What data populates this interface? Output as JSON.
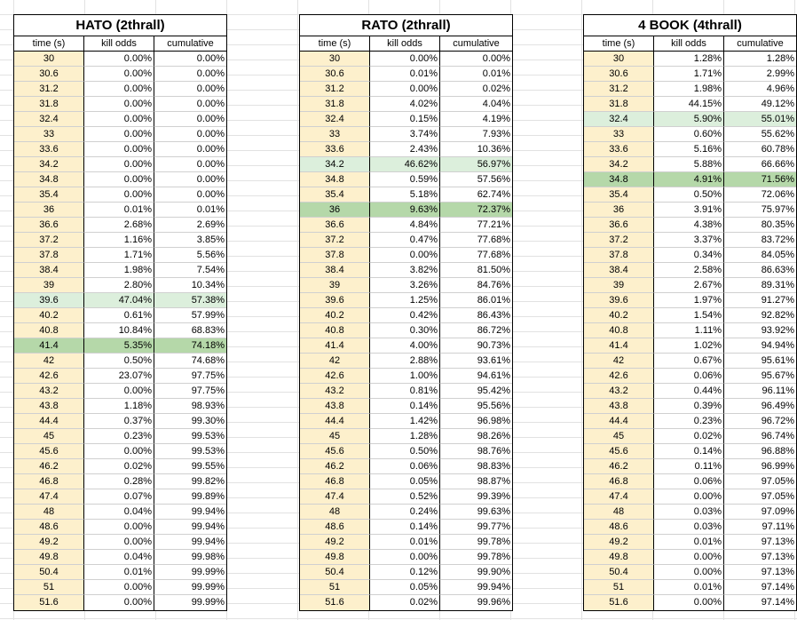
{
  "tables": [
    {
      "title": "HATO (2thrall)",
      "headers": [
        "time (s)",
        "kill odds",
        "cumulative"
      ],
      "highlight_light_row": 16,
      "highlight_dark_row": 19,
      "rows": [
        [
          "30",
          "0.00%",
          "0.00%"
        ],
        [
          "30.6",
          "0.00%",
          "0.00%"
        ],
        [
          "31.2",
          "0.00%",
          "0.00%"
        ],
        [
          "31.8",
          "0.00%",
          "0.00%"
        ],
        [
          "32.4",
          "0.00%",
          "0.00%"
        ],
        [
          "33",
          "0.00%",
          "0.00%"
        ],
        [
          "33.6",
          "0.00%",
          "0.00%"
        ],
        [
          "34.2",
          "0.00%",
          "0.00%"
        ],
        [
          "34.8",
          "0.00%",
          "0.00%"
        ],
        [
          "35.4",
          "0.00%",
          "0.00%"
        ],
        [
          "36",
          "0.01%",
          "0.01%"
        ],
        [
          "36.6",
          "2.68%",
          "2.69%"
        ],
        [
          "37.2",
          "1.16%",
          "3.85%"
        ],
        [
          "37.8",
          "1.71%",
          "5.56%"
        ],
        [
          "38.4",
          "1.98%",
          "7.54%"
        ],
        [
          "39",
          "2.80%",
          "10.34%"
        ],
        [
          "39.6",
          "47.04%",
          "57.38%"
        ],
        [
          "40.2",
          "0.61%",
          "57.99%"
        ],
        [
          "40.8",
          "10.84%",
          "68.83%"
        ],
        [
          "41.4",
          "5.35%",
          "74.18%"
        ],
        [
          "42",
          "0.50%",
          "74.68%"
        ],
        [
          "42.6",
          "23.07%",
          "97.75%"
        ],
        [
          "43.2",
          "0.00%",
          "97.75%"
        ],
        [
          "43.8",
          "1.18%",
          "98.93%"
        ],
        [
          "44.4",
          "0.37%",
          "99.30%"
        ],
        [
          "45",
          "0.23%",
          "99.53%"
        ],
        [
          "45.6",
          "0.00%",
          "99.53%"
        ],
        [
          "46.2",
          "0.02%",
          "99.55%"
        ],
        [
          "46.8",
          "0.28%",
          "99.82%"
        ],
        [
          "47.4",
          "0.07%",
          "99.89%"
        ],
        [
          "48",
          "0.04%",
          "99.94%"
        ],
        [
          "48.6",
          "0.00%",
          "99.94%"
        ],
        [
          "49.2",
          "0.00%",
          "99.94%"
        ],
        [
          "49.8",
          "0.04%",
          "99.98%"
        ],
        [
          "50.4",
          "0.01%",
          "99.99%"
        ],
        [
          "51",
          "0.00%",
          "99.99%"
        ],
        [
          "51.6",
          "0.00%",
          "99.99%"
        ]
      ]
    },
    {
      "title": "RATO (2thrall)",
      "headers": [
        "time (s)",
        "kill odds",
        "cumulative"
      ],
      "highlight_light_row": 7,
      "highlight_dark_row": 10,
      "rows": [
        [
          "30",
          "0.00%",
          "0.00%"
        ],
        [
          "30.6",
          "0.01%",
          "0.01%"
        ],
        [
          "31.2",
          "0.00%",
          "0.02%"
        ],
        [
          "31.8",
          "4.02%",
          "4.04%"
        ],
        [
          "32.4",
          "0.15%",
          "4.19%"
        ],
        [
          "33",
          "3.74%",
          "7.93%"
        ],
        [
          "33.6",
          "2.43%",
          "10.36%"
        ],
        [
          "34.2",
          "46.62%",
          "56.97%"
        ],
        [
          "34.8",
          "0.59%",
          "57.56%"
        ],
        [
          "35.4",
          "5.18%",
          "62.74%"
        ],
        [
          "36",
          "9.63%",
          "72.37%"
        ],
        [
          "36.6",
          "4.84%",
          "77.21%"
        ],
        [
          "37.2",
          "0.47%",
          "77.68%"
        ],
        [
          "37.8",
          "0.00%",
          "77.68%"
        ],
        [
          "38.4",
          "3.82%",
          "81.50%"
        ],
        [
          "39",
          "3.26%",
          "84.76%"
        ],
        [
          "39.6",
          "1.25%",
          "86.01%"
        ],
        [
          "40.2",
          "0.42%",
          "86.43%"
        ],
        [
          "40.8",
          "0.30%",
          "86.72%"
        ],
        [
          "41.4",
          "4.00%",
          "90.73%"
        ],
        [
          "42",
          "2.88%",
          "93.61%"
        ],
        [
          "42.6",
          "1.00%",
          "94.61%"
        ],
        [
          "43.2",
          "0.81%",
          "95.42%"
        ],
        [
          "43.8",
          "0.14%",
          "95.56%"
        ],
        [
          "44.4",
          "1.42%",
          "96.98%"
        ],
        [
          "45",
          "1.28%",
          "98.26%"
        ],
        [
          "45.6",
          "0.50%",
          "98.76%"
        ],
        [
          "46.2",
          "0.06%",
          "98.83%"
        ],
        [
          "46.8",
          "0.05%",
          "98.87%"
        ],
        [
          "47.4",
          "0.52%",
          "99.39%"
        ],
        [
          "48",
          "0.24%",
          "99.63%"
        ],
        [
          "48.6",
          "0.14%",
          "99.77%"
        ],
        [
          "49.2",
          "0.01%",
          "99.78%"
        ],
        [
          "49.8",
          "0.00%",
          "99.78%"
        ],
        [
          "50.4",
          "0.12%",
          "99.90%"
        ],
        [
          "51",
          "0.05%",
          "99.94%"
        ],
        [
          "51.6",
          "0.02%",
          "99.96%"
        ]
      ]
    },
    {
      "title": "4 BOOK (4thrall)",
      "headers": [
        "time (s)",
        "kill odds",
        "cumulative"
      ],
      "highlight_light_row": 4,
      "highlight_dark_row": 8,
      "rows": [
        [
          "30",
          "1.28%",
          "1.28%"
        ],
        [
          "30.6",
          "1.71%",
          "2.99%"
        ],
        [
          "31.2",
          "1.98%",
          "4.96%"
        ],
        [
          "31.8",
          "44.15%",
          "49.12%"
        ],
        [
          "32.4",
          "5.90%",
          "55.01%"
        ],
        [
          "33",
          "0.60%",
          "55.62%"
        ],
        [
          "33.6",
          "5.16%",
          "60.78%"
        ],
        [
          "34.2",
          "5.88%",
          "66.66%"
        ],
        [
          "34.8",
          "4.91%",
          "71.56%"
        ],
        [
          "35.4",
          "0.50%",
          "72.06%"
        ],
        [
          "36",
          "3.91%",
          "75.97%"
        ],
        [
          "36.6",
          "4.38%",
          "80.35%"
        ],
        [
          "37.2",
          "3.37%",
          "83.72%"
        ],
        [
          "37.8",
          "0.34%",
          "84.05%"
        ],
        [
          "38.4",
          "2.58%",
          "86.63%"
        ],
        [
          "39",
          "2.67%",
          "89.31%"
        ],
        [
          "39.6",
          "1.97%",
          "91.27%"
        ],
        [
          "40.2",
          "1.54%",
          "92.82%"
        ],
        [
          "40.8",
          "1.11%",
          "93.92%"
        ],
        [
          "41.4",
          "1.02%",
          "94.94%"
        ],
        [
          "42",
          "0.67%",
          "95.61%"
        ],
        [
          "42.6",
          "0.06%",
          "95.67%"
        ],
        [
          "43.2",
          "0.44%",
          "96.11%"
        ],
        [
          "43.8",
          "0.39%",
          "96.49%"
        ],
        [
          "44.4",
          "0.23%",
          "96.72%"
        ],
        [
          "45",
          "0.02%",
          "96.74%"
        ],
        [
          "45.6",
          "0.14%",
          "96.88%"
        ],
        [
          "46.2",
          "0.11%",
          "96.99%"
        ],
        [
          "46.8",
          "0.06%",
          "97.05%"
        ],
        [
          "47.4",
          "0.00%",
          "97.05%"
        ],
        [
          "48",
          "0.03%",
          "97.09%"
        ],
        [
          "48.6",
          "0.03%",
          "97.11%"
        ],
        [
          "49.2",
          "0.01%",
          "97.13%"
        ],
        [
          "49.8",
          "0.00%",
          "97.13%"
        ],
        [
          "50.4",
          "0.00%",
          "97.13%"
        ],
        [
          "51",
          "0.01%",
          "97.14%"
        ],
        [
          "51.6",
          "0.00%",
          "97.14%"
        ]
      ]
    }
  ]
}
